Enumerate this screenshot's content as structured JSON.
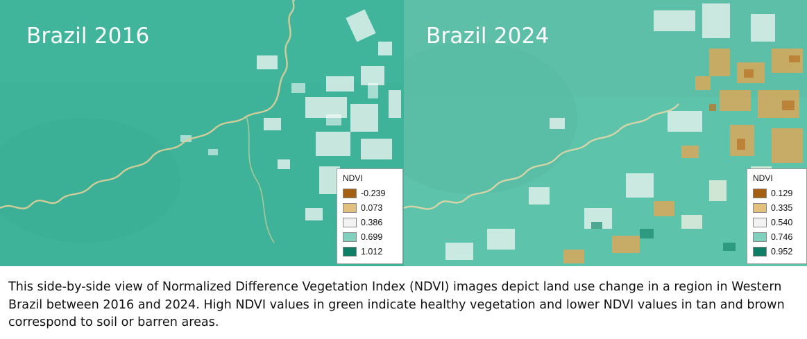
{
  "panels": [
    {
      "title": "Brazil 2016",
      "map_style": "mostly-green-forest",
      "legend": {
        "title": "NDVI",
        "items": [
          {
            "label": "-0.239",
            "color": "#a45f10"
          },
          {
            "label": "0.073",
            "color": "#e3c17c"
          },
          {
            "label": "0.386",
            "color": "#f2f2f2"
          },
          {
            "label": "0.699",
            "color": "#7fd1bd"
          },
          {
            "label": "1.012",
            "color": "#0f7e66"
          }
        ]
      }
    },
    {
      "title": "Brazil 2024",
      "map_style": "green-with-cleared-tan-areas",
      "legend": {
        "title": "NDVI",
        "items": [
          {
            "label": "0.129",
            "color": "#a45f10"
          },
          {
            "label": "0.335",
            "color": "#e3c17c"
          },
          {
            "label": "0.540",
            "color": "#f2f2f2"
          },
          {
            "label": "0.746",
            "color": "#7fd1bd"
          },
          {
            "label": "0.952",
            "color": "#0f7e66"
          }
        ]
      }
    }
  ],
  "colors": {
    "forest": "#3fb39a",
    "river": "#d9cf9a",
    "cleared_light": "#dff1ea",
    "cleared_tan": "#d9a85a"
  },
  "caption": "This side-by-side view of Normalized Difference Vegetation Index (NDVI) images depict land use change in a region in Western Brazil between 2016 and 2024. High NDVI values in green indicate healthy vegetation and lower NDVI values in tan and brown correspond to soil or barren areas."
}
